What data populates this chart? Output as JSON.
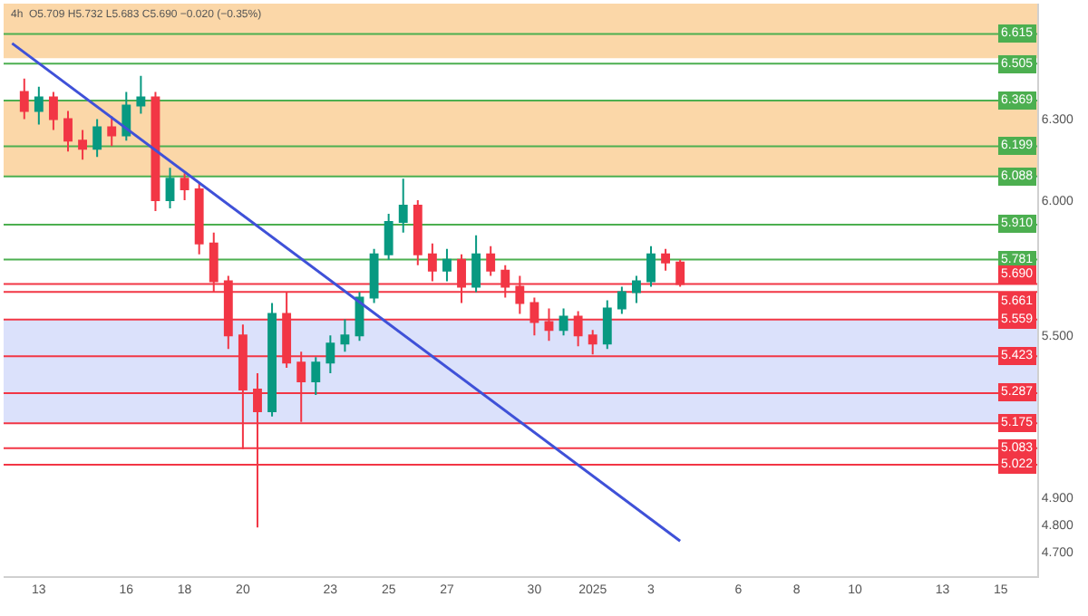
{
  "chart_data": {
    "type": "candlestick",
    "title": "4h  O5.709 H5.732 L5.683 C5.690 −0.020 (−0.35%)",
    "x": [
      "2024-12-12T12:00",
      "2024-12-13T00:00",
      "2024-12-13T12:00",
      "2024-12-14T00:00",
      "2024-12-14T12:00",
      "2024-12-15T00:00",
      "2024-12-15T12:00",
      "2024-12-16T00:00",
      "2024-12-16T12:00",
      "2024-12-17T00:00",
      "2024-12-17T12:00",
      "2024-12-18T00:00",
      "2024-12-18T12:00",
      "2024-12-19T00:00",
      "2024-12-19T12:00",
      "2024-12-20T00:00",
      "2024-12-20T12:00",
      "2024-12-21T00:00",
      "2024-12-21T12:00",
      "2024-12-22T00:00",
      "2024-12-22T12:00",
      "2024-12-23T00:00",
      "2024-12-23T12:00",
      "2024-12-24T00:00",
      "2024-12-24T12:00",
      "2024-12-25T00:00",
      "2024-12-25T12:00",
      "2024-12-26T00:00",
      "2024-12-26T12:00",
      "2024-12-27T00:00",
      "2024-12-27T12:00",
      "2024-12-28T00:00",
      "2024-12-28T12:00",
      "2024-12-29T00:00",
      "2024-12-29T12:00",
      "2024-12-30T00:00",
      "2024-12-30T12:00",
      "2024-12-31T00:00",
      "2024-12-31T12:00",
      "2025-01-01T00:00",
      "2025-01-01T12:00",
      "2025-01-02T00:00",
      "2025-01-02T12:00",
      "2025-01-03T00:00",
      "2025-01-03T12:00",
      "2025-01-04T00:00"
    ],
    "ohlc": [
      [
        6.4,
        6.45,
        6.3,
        6.33
      ],
      [
        6.33,
        6.42,
        6.28,
        6.38
      ],
      [
        6.38,
        6.4,
        6.26,
        6.3
      ],
      [
        6.3,
        6.33,
        6.18,
        6.22
      ],
      [
        6.22,
        6.26,
        6.15,
        6.19
      ],
      [
        6.19,
        6.3,
        6.16,
        6.27
      ],
      [
        6.27,
        6.31,
        6.2,
        6.24
      ],
      [
        6.24,
        6.4,
        6.22,
        6.35
      ],
      [
        6.35,
        6.46,
        6.32,
        6.38
      ],
      [
        6.38,
        6.4,
        5.96,
        6.0
      ],
      [
        6.0,
        6.12,
        5.97,
        6.08
      ],
      [
        6.08,
        6.1,
        6.0,
        6.04
      ],
      [
        6.04,
        6.06,
        5.8,
        5.84
      ],
      [
        5.84,
        5.88,
        5.66,
        5.7
      ],
      [
        5.7,
        5.72,
        5.45,
        5.5
      ],
      [
        5.5,
        5.54,
        5.08,
        5.3
      ],
      [
        5.3,
        5.36,
        4.79,
        5.22
      ],
      [
        5.22,
        5.62,
        5.2,
        5.58
      ],
      [
        5.58,
        5.66,
        5.38,
        5.4
      ],
      [
        5.4,
        5.44,
        5.18,
        5.33
      ],
      [
        5.33,
        5.42,
        5.28,
        5.4
      ],
      [
        5.4,
        5.5,
        5.36,
        5.47
      ],
      [
        5.47,
        5.56,
        5.44,
        5.5
      ],
      [
        5.5,
        5.66,
        5.48,
        5.64
      ],
      [
        5.64,
        5.82,
        5.62,
        5.8
      ],
      [
        5.8,
        5.95,
        5.78,
        5.92
      ],
      [
        5.92,
        6.08,
        5.88,
        5.98
      ],
      [
        5.98,
        6.0,
        5.76,
        5.8
      ],
      [
        5.8,
        5.84,
        5.7,
        5.74
      ],
      [
        5.74,
        5.82,
        5.7,
        5.78
      ],
      [
        5.78,
        5.8,
        5.62,
        5.68
      ],
      [
        5.68,
        5.87,
        5.66,
        5.8
      ],
      [
        5.8,
        5.83,
        5.72,
        5.74
      ],
      [
        5.74,
        5.76,
        5.64,
        5.68
      ],
      [
        5.68,
        5.72,
        5.58,
        5.62
      ],
      [
        5.62,
        5.64,
        5.5,
        5.55
      ],
      [
        5.55,
        5.6,
        5.48,
        5.52
      ],
      [
        5.52,
        5.6,
        5.5,
        5.57
      ],
      [
        5.57,
        5.59,
        5.46,
        5.5
      ],
      [
        5.5,
        5.52,
        5.43,
        5.47
      ],
      [
        5.47,
        5.63,
        5.45,
        5.6
      ],
      [
        5.6,
        5.68,
        5.58,
        5.66
      ],
      [
        5.66,
        5.72,
        5.62,
        5.7
      ],
      [
        5.7,
        5.83,
        5.68,
        5.8
      ],
      [
        5.8,
        5.82,
        5.74,
        5.77
      ],
      [
        5.77,
        5.78,
        5.68,
        5.69
      ]
    ],
    "series": [
      {
        "type": "line",
        "color": "#3f51d8",
        "x": [
          "2024-12-12T02:00",
          "2025-01-04T00:00"
        ],
        "values": [
          6.58,
          4.74
        ]
      }
    ],
    "xlim": [
      "2024-12-11T19:00",
      "2025-01-16T06:00"
    ],
    "xticks": [
      {
        "value": "2024-12-13",
        "label": "13"
      },
      {
        "value": "2024-12-16",
        "label": "16"
      },
      {
        "value": "2024-12-18",
        "label": "18"
      },
      {
        "value": "2024-12-20",
        "label": "20"
      },
      {
        "value": "2024-12-23",
        "label": "23"
      },
      {
        "value": "2024-12-25",
        "label": "25"
      },
      {
        "value": "2024-12-27",
        "label": "27"
      },
      {
        "value": "2024-12-30",
        "label": "30"
      },
      {
        "value": "2025-01-01",
        "label": "2025"
      },
      {
        "value": "2025-01-03",
        "label": "3"
      },
      {
        "value": "2025-01-06",
        "label": "6"
      },
      {
        "value": "2025-01-08",
        "label": "8"
      },
      {
        "value": "2025-01-10",
        "label": "10"
      },
      {
        "value": "2025-01-13",
        "label": "13"
      },
      {
        "value": "2025-01-15",
        "label": "15"
      }
    ],
    "ylim": [
      4.61,
      6.727
    ],
    "yticks": [
      {
        "value": 4.7,
        "label": "4.700"
      },
      {
        "value": 4.8,
        "label": "4.800"
      },
      {
        "value": 4.9,
        "label": "4.900"
      },
      {
        "value": 5.5,
        "label": "5.500"
      },
      {
        "value": 6.0,
        "label": "6.000"
      },
      {
        "value": 6.3,
        "label": "6.300"
      }
    ],
    "bands": [
      {
        "axis": "y",
        "from": 6.525,
        "to": 6.727,
        "color": "#fbd7a8"
      },
      {
        "axis": "y",
        "from": 6.088,
        "to": 6.369,
        "color": "#fbd7a8"
      },
      {
        "axis": "y",
        "from": 5.175,
        "to": 5.559,
        "color": "#dbe1fb"
      }
    ],
    "ref_lines": [
      {
        "axis": "y",
        "value": 6.615,
        "label": "6.615",
        "color": "#4caf50"
      },
      {
        "axis": "y",
        "value": 6.505,
        "label": "6.505",
        "color": "#4caf50"
      },
      {
        "axis": "y",
        "value": 6.369,
        "label": "6.369",
        "color": "#4caf50"
      },
      {
        "axis": "y",
        "value": 6.199,
        "label": "6.199",
        "color": "#4caf50"
      },
      {
        "axis": "y",
        "value": 6.088,
        "label": "6.088",
        "color": "#4caf50"
      },
      {
        "axis": "y",
        "value": 5.91,
        "label": "5.910",
        "color": "#4caf50"
      },
      {
        "axis": "y",
        "value": 5.781,
        "label": "5.781",
        "color": "#4caf50"
      },
      {
        "axis": "y",
        "value": 5.69,
        "label": "5.690",
        "color": "#f23645"
      },
      {
        "axis": "y",
        "value": 5.661,
        "label": "5.661",
        "color": "#f23645"
      },
      {
        "axis": "y",
        "value": 5.559,
        "label": "5.559",
        "color": "#f23645"
      },
      {
        "axis": "y",
        "value": 5.423,
        "label": "5.423",
        "color": "#f23645"
      },
      {
        "axis": "y",
        "value": 5.287,
        "label": "5.287",
        "color": "#f23645"
      },
      {
        "axis": "y",
        "value": 5.175,
        "label": "5.175",
        "color": "#f23645"
      },
      {
        "axis": "y",
        "value": 5.083,
        "label": "5.083",
        "color": "#f23645"
      },
      {
        "axis": "y",
        "value": 5.022,
        "label": "5.022",
        "color": "#f23645"
      }
    ]
  }
}
